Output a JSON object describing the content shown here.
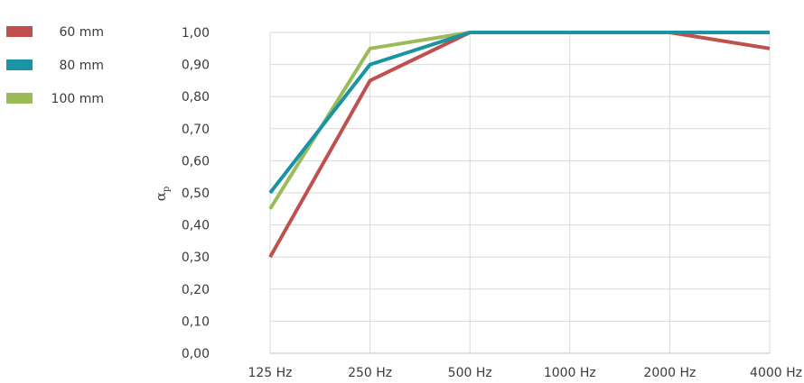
{
  "chart_data": {
    "type": "line",
    "categories": [
      "125 Hz",
      "250 Hz",
      "500 Hz",
      "1000 Hz",
      "2000 Hz",
      "4000 Hz"
    ],
    "series": [
      {
        "name": "60 mm",
        "color": "#c0504d",
        "values": [
          0.3,
          0.85,
          1.0,
          1.0,
          1.0,
          0.95
        ]
      },
      {
        "name": "80 mm",
        "color": "#1a94a5",
        "values": [
          0.5,
          0.9,
          1.0,
          1.0,
          1.0,
          1.0
        ]
      },
      {
        "name": "100 mm",
        "color": "#9bbb59",
        "values": [
          0.45,
          0.95,
          1.0,
          1.0,
          1.0,
          1.0
        ]
      }
    ],
    "ylabel": "αp",
    "ylim": [
      0,
      1
    ],
    "yticks": [
      "0,00",
      "0,10",
      "0,20",
      "0,30",
      "0,40",
      "0,50",
      "0,60",
      "0,70",
      "0,80",
      "0,90",
      "1,00"
    ],
    "grid": true,
    "legend_position": "top-left"
  }
}
